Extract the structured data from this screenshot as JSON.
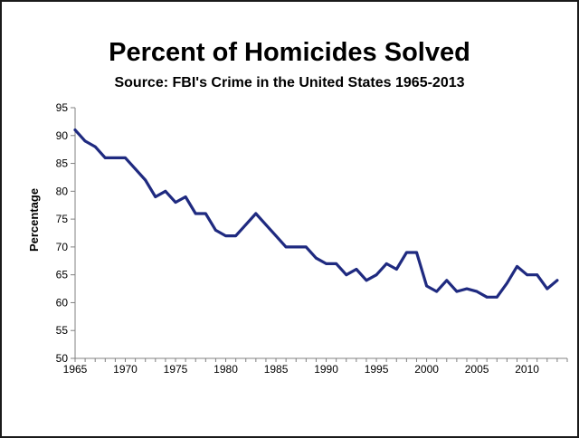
{
  "chart_data": {
    "type": "line",
    "title": "Percent of Homicides Solved",
    "subtitle": "Source: FBI's Crime in the United States 1965-2013",
    "xlabel": "",
    "ylabel": "Percentage",
    "xlim": [
      1965,
      2014
    ],
    "ylim": [
      50,
      95
    ],
    "x_ticks": [
      1965,
      1970,
      1975,
      1980,
      1985,
      1990,
      1995,
      2000,
      2005,
      2010
    ],
    "y_ticks": [
      50,
      55,
      60,
      65,
      70,
      75,
      80,
      85,
      90,
      95
    ],
    "grid": false,
    "legend": "none",
    "line_color": "#1f2a80",
    "series": [
      {
        "x": [
          1965,
          1966,
          1967,
          1968,
          1969,
          1970,
          1971,
          1972,
          1973,
          1974,
          1975,
          1976,
          1977,
          1978,
          1979,
          1980,
          1981,
          1982,
          1983,
          1984,
          1985,
          1986,
          1987,
          1988,
          1989,
          1990,
          1991,
          1992,
          1993,
          1994,
          1995,
          1996,
          1997,
          1998,
          1999,
          2000,
          2001,
          2002,
          2003,
          2004,
          2005,
          2006,
          2007,
          2008,
          2009,
          2010,
          2011,
          2012,
          2013
        ],
        "values": [
          91,
          89,
          88,
          86,
          86,
          86,
          84,
          82,
          79,
          80,
          78,
          79,
          76,
          76,
          73,
          72,
          72,
          74,
          76,
          74,
          72,
          70,
          70,
          70,
          68,
          67,
          67,
          65,
          66,
          64,
          65,
          67,
          66,
          69,
          69,
          63,
          62,
          64,
          62,
          62.5,
          62,
          61,
          61,
          63.5,
          66.5,
          65,
          65,
          62.5,
          64
        ]
      }
    ]
  }
}
